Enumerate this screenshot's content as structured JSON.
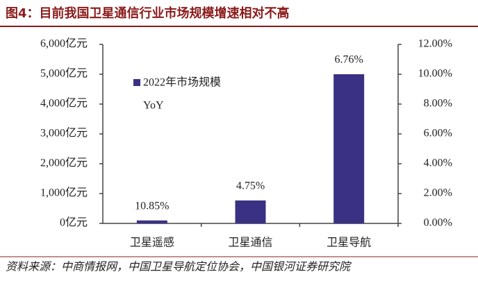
{
  "chart_data": {
    "type": "bar",
    "title": "图4：目前我国卫星通信行业市场规模增速相对不高",
    "source": "资料来源：中商情报网，中国卫星导航定位协会，中国银河证券研究院",
    "categories": [
      "卫星遥感",
      "卫星通信",
      "卫星导航"
    ],
    "series": [
      {
        "name": "2022年市场规模",
        "color": "#3a3185",
        "values": [
          100,
          770,
          5000
        ]
      },
      {
        "name": "YoY",
        "axis": "y2",
        "values": [
          10.85,
          4.75,
          6.76
        ],
        "value_labels": [
          "10.85%",
          "4.75%",
          "6.76%"
        ]
      }
    ],
    "ylim": [
      0,
      6000
    ],
    "yticks": [
      {
        "value": 0,
        "label": "0亿元"
      },
      {
        "value": 1000,
        "label": "1,000亿元"
      },
      {
        "value": 2000,
        "label": "2,000亿元"
      },
      {
        "value": 3000,
        "label": "3,000亿元"
      },
      {
        "value": 4000,
        "label": "4,000亿元"
      },
      {
        "value": 5000,
        "label": "5,000亿元"
      },
      {
        "value": 6000,
        "label": "6,000亿元"
      }
    ],
    "y2lim": [
      0,
      12
    ],
    "y2ticks": [
      {
        "value": 0,
        "label": "0.00%"
      },
      {
        "value": 2,
        "label": "2.00%"
      },
      {
        "value": 4,
        "label": "4.00%"
      },
      {
        "value": 6,
        "label": "6.00%"
      },
      {
        "value": 8,
        "label": "8.00%"
      },
      {
        "value": 10,
        "label": "10.00%"
      },
      {
        "value": 12,
        "label": "12.00%"
      }
    ]
  }
}
